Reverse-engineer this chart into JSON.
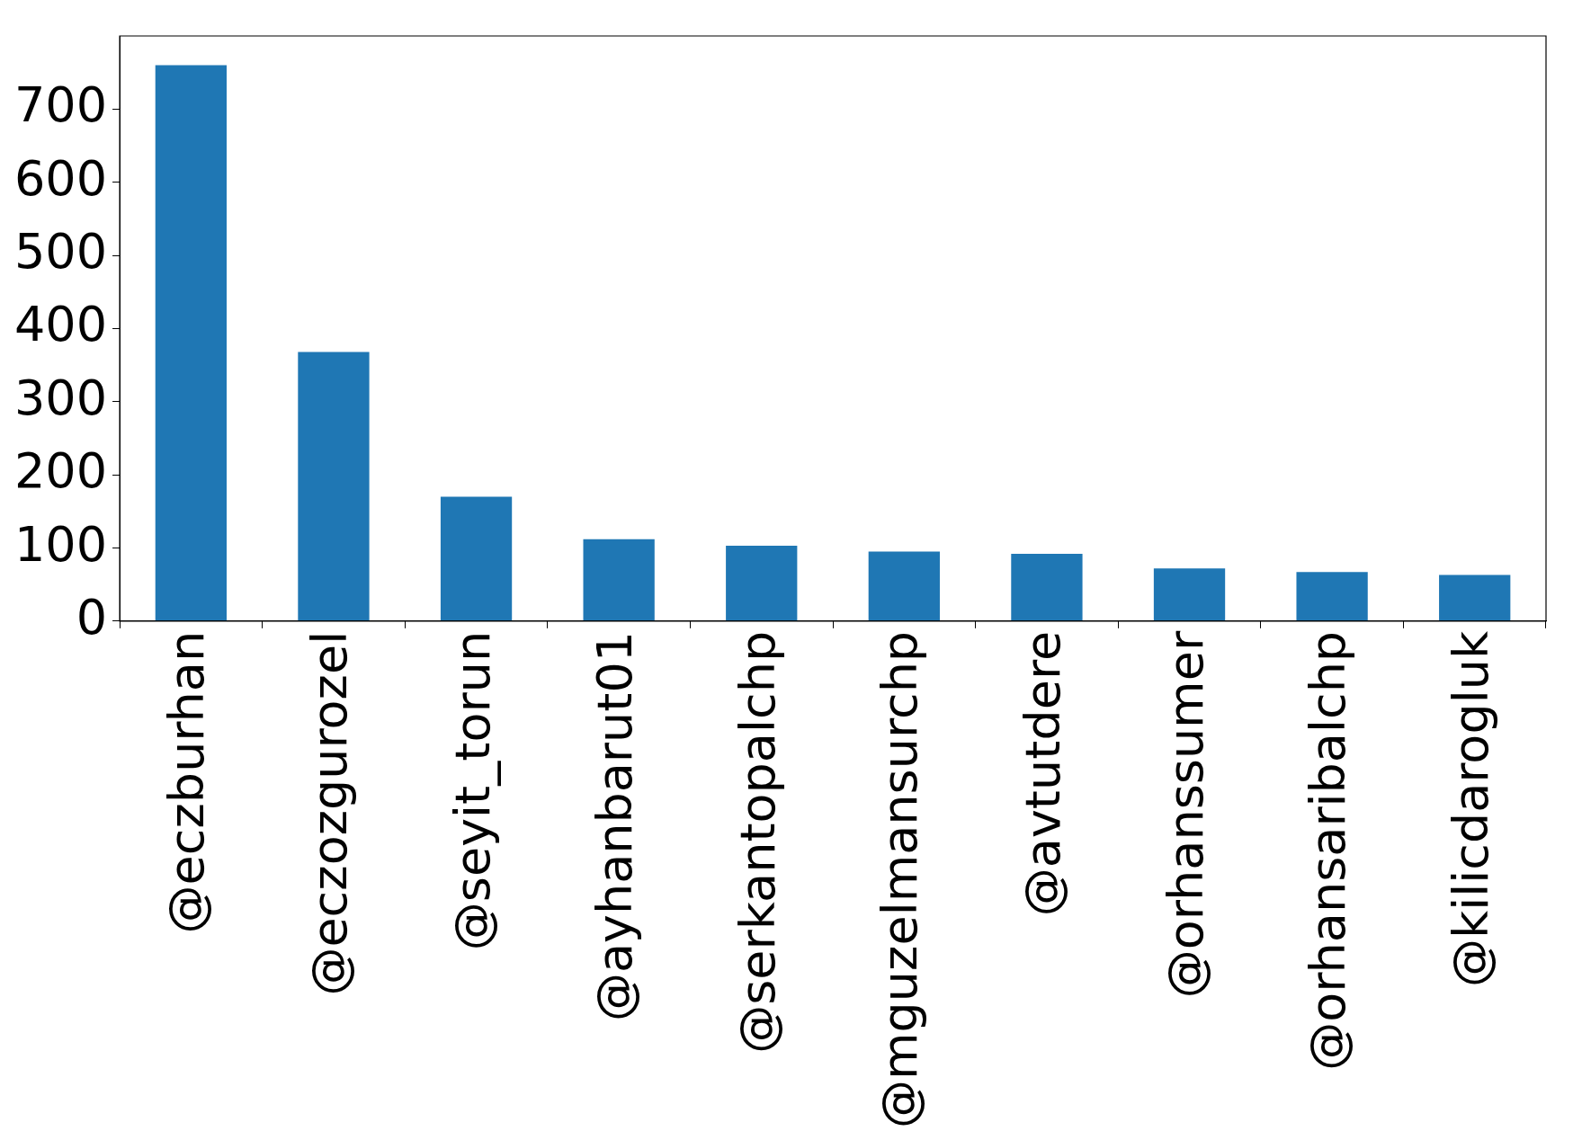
{
  "chart_data": {
    "type": "bar",
    "categories": [
      "@eczburhan",
      "@eczozgurozel",
      "@seyit_torun",
      "@ayhanbarut01",
      "@serkantopalchp",
      "@mguzelmansurchp",
      "@avtutdere",
      "@orhanssumer",
      "@orhansaribalchp",
      "@kilicdarogluk"
    ],
    "values": [
      760,
      368,
      170,
      112,
      103,
      95,
      92,
      72,
      67,
      63
    ],
    "color": "#1f77b4",
    "ylim": [
      0,
      800
    ],
    "yticks": [
      0,
      100,
      200,
      300,
      400,
      500,
      600,
      700
    ],
    "grid": false,
    "legend": false
  }
}
